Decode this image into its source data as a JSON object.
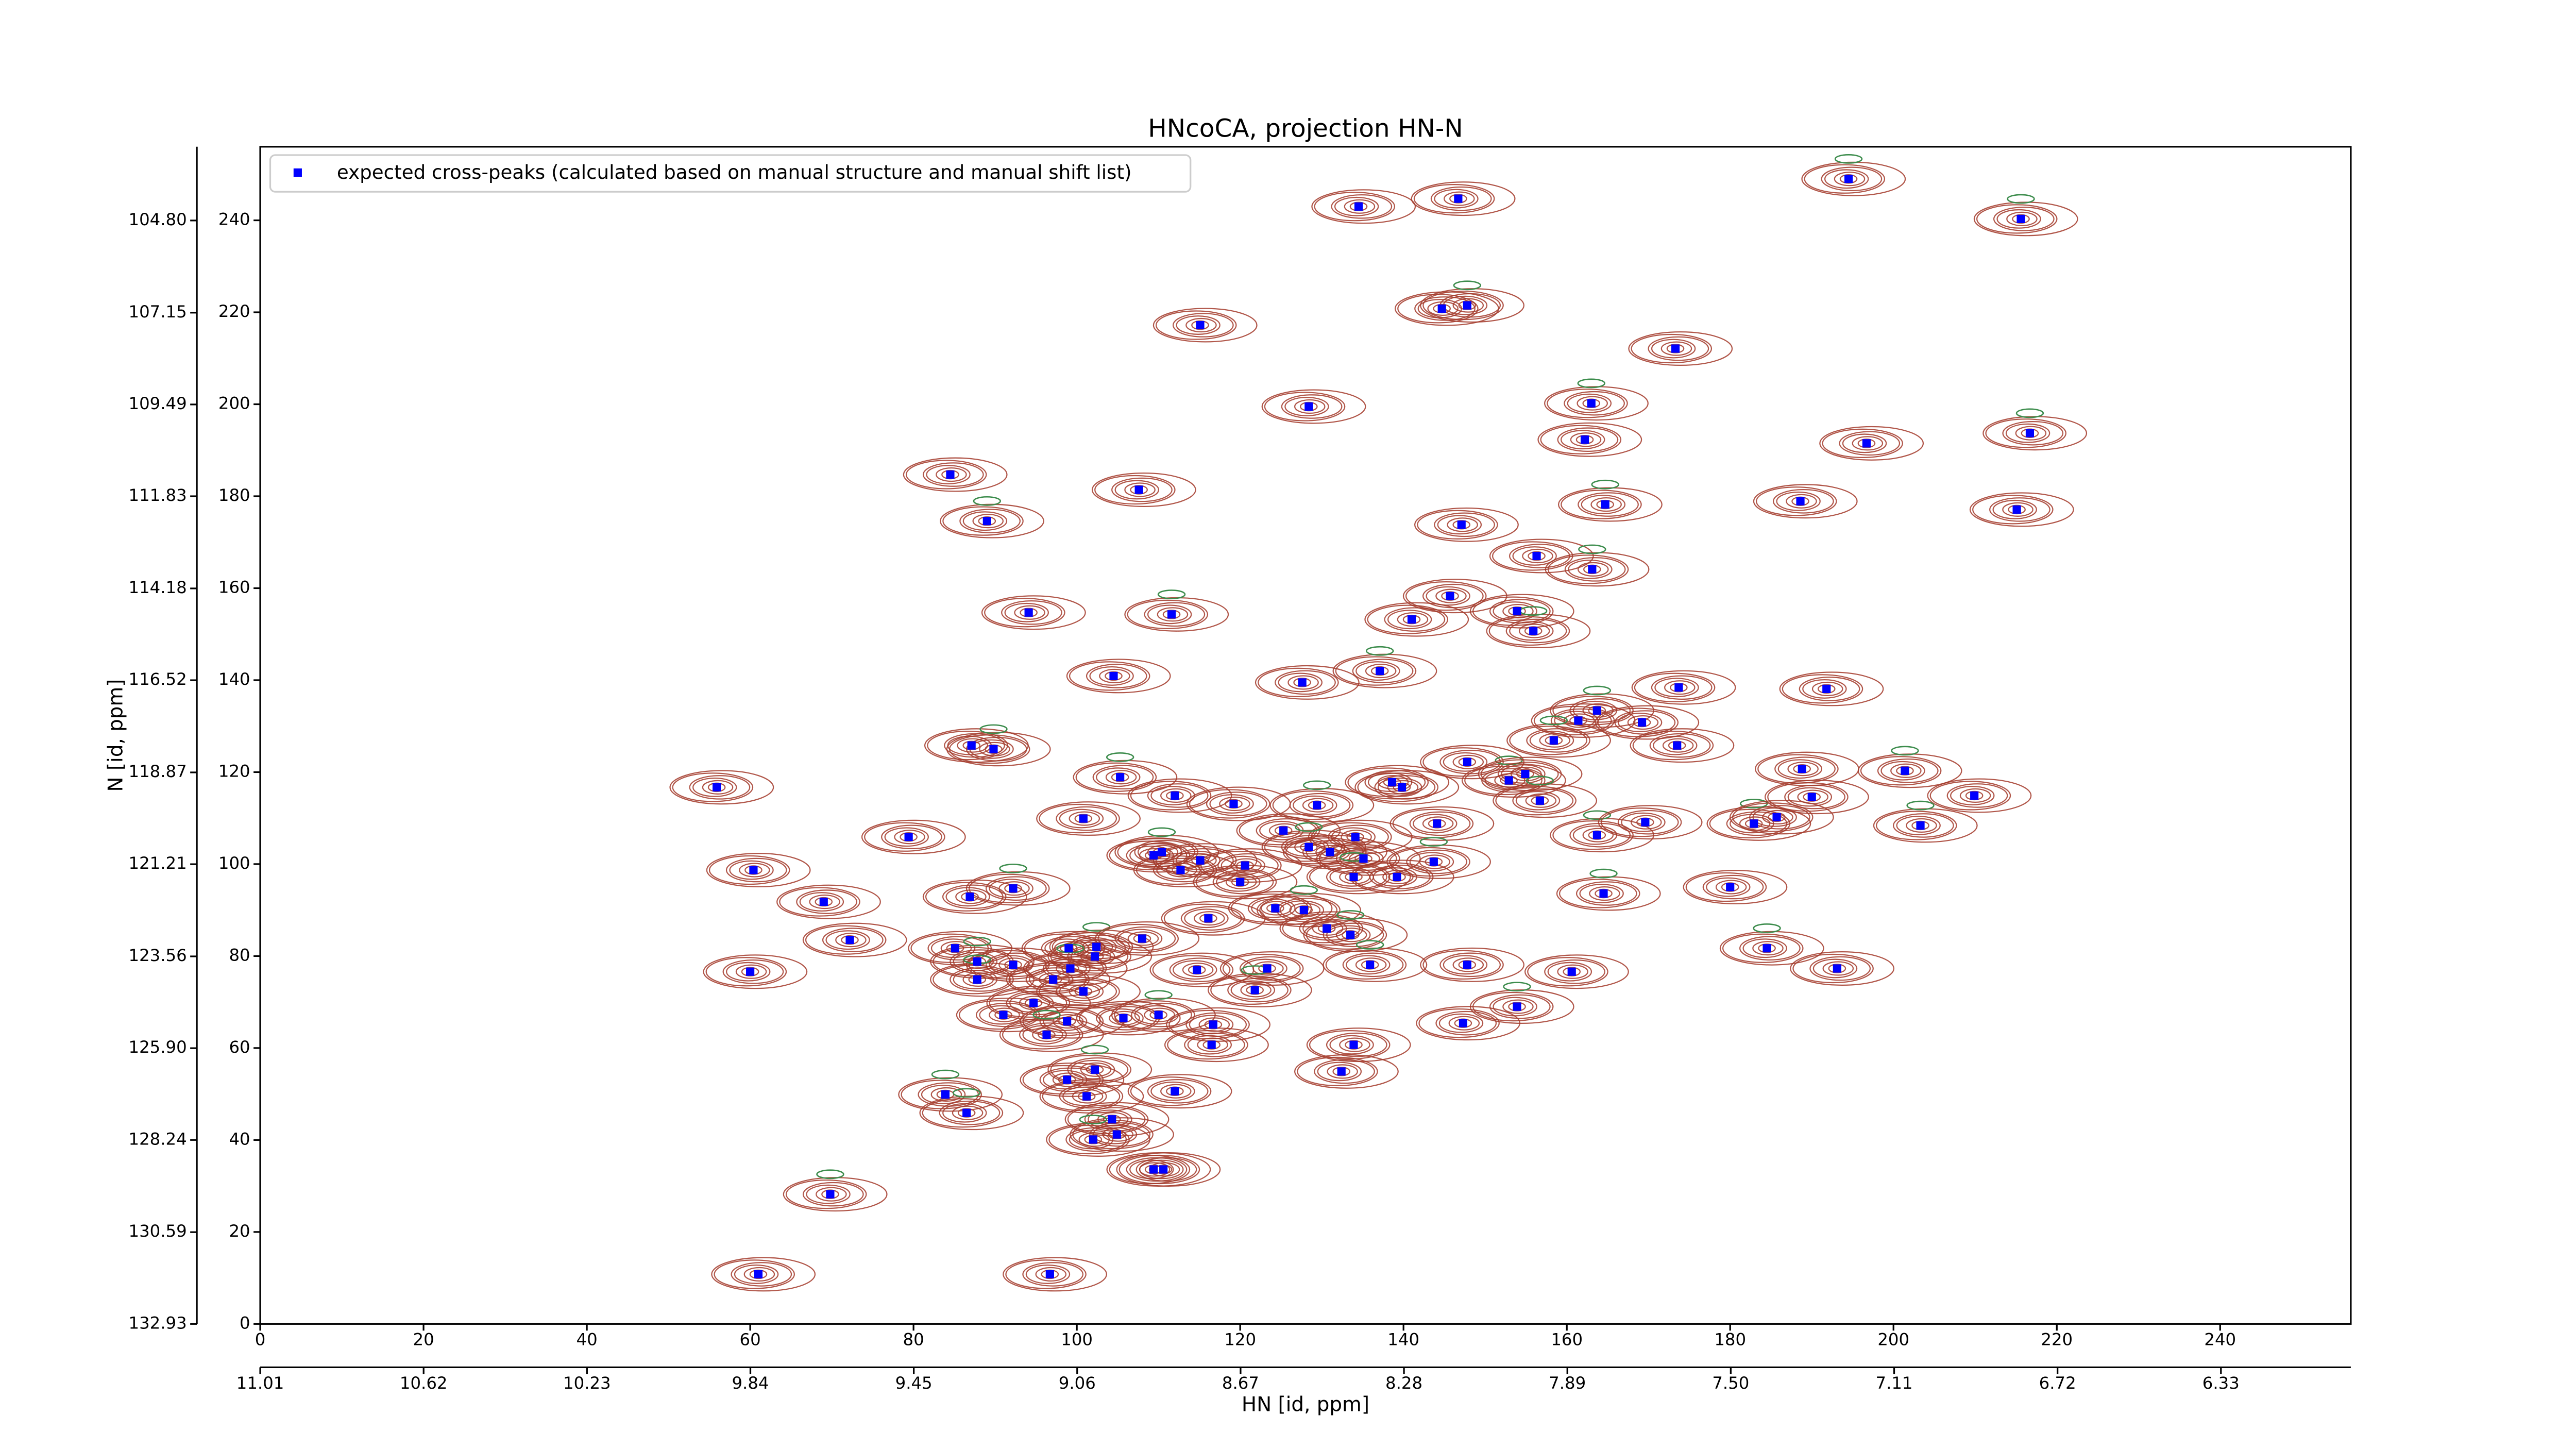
{
  "chart_data": {
    "type": "scatter",
    "title": "HNcoCA, projection HN-N",
    "xlabel": "HN [id, ppm]",
    "ylabel": "N [id, ppm]",
    "xlim": [
      0,
      256
    ],
    "ylim": [
      0,
      256
    ],
    "xticks": [
      0,
      20,
      40,
      60,
      80,
      100,
      120,
      140,
      160,
      180,
      200,
      220,
      240
    ],
    "yticks": [
      0,
      20,
      40,
      60,
      80,
      100,
      120,
      140,
      160,
      180,
      200,
      220,
      240
    ],
    "x2lim": [
      11.01,
      6.02
    ],
    "x2ticks": [
      11.01,
      10.62,
      10.23,
      9.84,
      9.45,
      9.06,
      8.67,
      8.28,
      7.89,
      {
        "value": 7.5,
        "label": "7.50"
      },
      7.11,
      6.72,
      6.33
    ],
    "y2lim": [
      132.93,
      102.92
    ],
    "y2ticks": [
      132.93,
      130.59,
      128.24,
      {
        "value": 125.9,
        "label": "125.90"
      },
      123.56,
      121.21,
      118.87,
      116.52,
      114.18,
      111.83,
      109.49,
      107.15,
      {
        "value": 104.8,
        "label": "104.80"
      }
    ],
    "legend": "upper left",
    "contour_color": "#a33a2a",
    "negative_contour_color": "#3c8c4c",
    "x": [
      194.5,
      134.5,
      146.7,
      215.6,
      115.1,
      144.7,
      147.8,
      173.3,
      128.4,
      163.0,
      162.2,
      196.7,
      216.7,
      84.5,
      107.6,
      164.7,
      188.6,
      215.1,
      89.0,
      147.1,
      156.3,
      163.1,
      145.7,
      94.1,
      111.6,
      141.0,
      153.9,
      155.9,
      104.5,
      127.6,
      137.1,
      173.7,
      191.8,
      163.7,
      161.4,
      169.2,
      158.4,
      173.5,
      87.1,
      89.8,
      147.8,
      55.9,
      105.3,
      138.6,
      139.8,
      152.9,
      154.9,
      188.8,
      201.4,
      190.0,
      209.9,
      156.7,
      112.0,
      119.2,
      129.4,
      144.1,
      100.8,
      163.7,
      125.3,
      79.4,
      182.9,
      185.7,
      169.6,
      203.3,
      134.1,
      109.4,
      110.4,
      115.1,
      112.7,
      128.4,
      131.0,
      135.1,
      143.7,
      60.4,
      120.6,
      133.9,
      139.2,
      180.0,
      164.5,
      120.0,
      86.9,
      92.2,
      69.0,
      124.3,
      127.8,
      116.1,
      130.6,
      133.5,
      72.2,
      85.1,
      87.8,
      92.2,
      99.0,
      102.4,
      102.2,
      108.0,
      99.2,
      114.7,
      123.3,
      135.9,
      147.8,
      160.6,
      184.5,
      193.1,
      60.0,
      87.8,
      97.1,
      100.8,
      121.8,
      94.7,
      91.0,
      153.9,
      98.8,
      105.7,
      110.0,
      116.7,
      147.3,
      96.3,
      116.5,
      133.9,
      102.2,
      132.4,
      98.8,
      83.9,
      101.2,
      112.0,
      86.5,
      104.3,
      104.9,
      102.0,
      109.4,
      110.6,
      69.8,
      61.0,
      96.7
    ],
    "series": [
      {
        "name": "expected cross-peaks (calculated based on manual structure and manual shift list)",
        "color": "#0000ff",
        "values": [
          249.0,
          243.0,
          244.7,
          240.3,
          217.2,
          220.8,
          221.5,
          212.1,
          199.5,
          200.2,
          192.3,
          191.5,
          193.7,
          184.7,
          181.4,
          178.2,
          178.9,
          177.1,
          174.6,
          173.8,
          167.0,
          164.1,
          158.3,
          154.7,
          154.3,
          153.2,
          155.0,
          150.7,
          140.9,
          139.5,
          142.0,
          138.4,
          138.1,
          133.4,
          131.2,
          130.8,
          126.9,
          125.8,
          125.8,
          125.0,
          122.2,
          116.7,
          118.9,
          117.8,
          116.7,
          118.2,
          119.6,
          120.7,
          120.3,
          114.6,
          114.9,
          113.8,
          114.9,
          113.1,
          112.8,
          108.8,
          109.9,
          106.3,
          107.3,
          105.9,
          108.8,
          110.2,
          109.1,
          108.4,
          105.9,
          101.9,
          102.6,
          100.8,
          98.7,
          103.7,
          102.6,
          101.2,
          100.5,
          98.7,
          99.7,
          97.2,
          97.2,
          95.0,
          93.6,
          96.1,
          92.9,
          94.7,
          91.8,
          90.4,
          90.0,
          88.2,
          86.0,
          84.6,
          83.5,
          81.7,
          78.8,
          78.1,
          81.7,
          82.0,
          79.9,
          83.8,
          77.3,
          77.0,
          77.3,
          78.1,
          78.1,
          76.6,
          81.7,
          77.3,
          76.6,
          74.9,
          74.9,
          72.3,
          72.6,
          69.8,
          67.2,
          69.0,
          65.8,
          66.5,
          67.2,
          65.1,
          65.4,
          62.9,
          60.7,
          60.7,
          55.3,
          54.9,
          53.1,
          49.9,
          49.5,
          50.6,
          45.9,
          44.5,
          41.2,
          40.1,
          33.6,
          33.6,
          28.2,
          10.8,
          10.8
        ]
      }
    ]
  }
}
